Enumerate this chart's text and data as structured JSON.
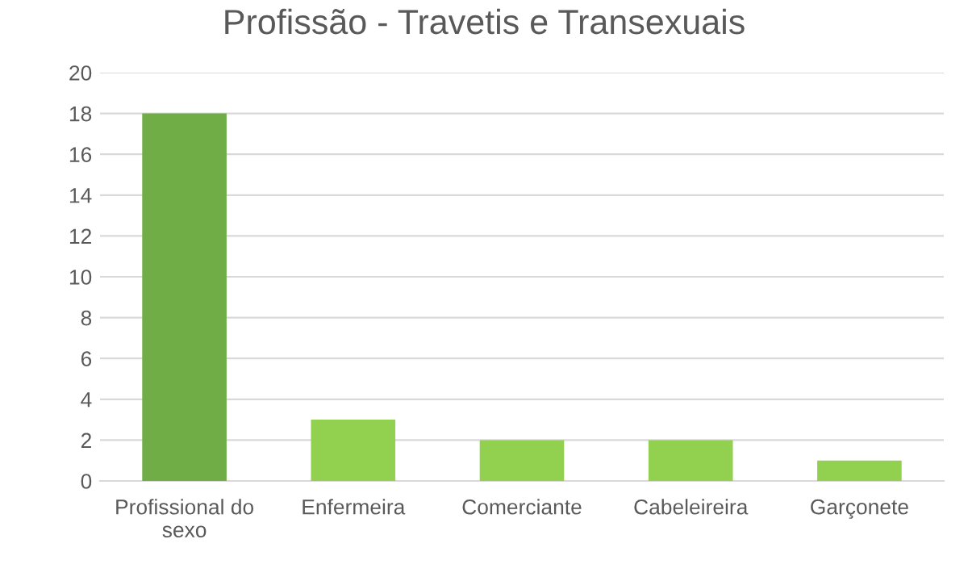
{
  "chart_data": {
    "type": "bar",
    "title": "Profissão - Travetis e Transexuais",
    "categories": [
      "Profissional do\nsexo",
      "Enfermeira",
      "Comerciante",
      "Cabeleireira",
      "Garçonete"
    ],
    "values": [
      18,
      3,
      2,
      2,
      1
    ],
    "colors": [
      "#70ad47",
      "#92d050",
      "#92d050",
      "#92d050",
      "#92d050"
    ],
    "ylim": [
      0,
      20
    ],
    "yticks": [
      0,
      2,
      4,
      6,
      8,
      10,
      12,
      14,
      16,
      18,
      20
    ],
    "grid": "y",
    "legend": false
  }
}
